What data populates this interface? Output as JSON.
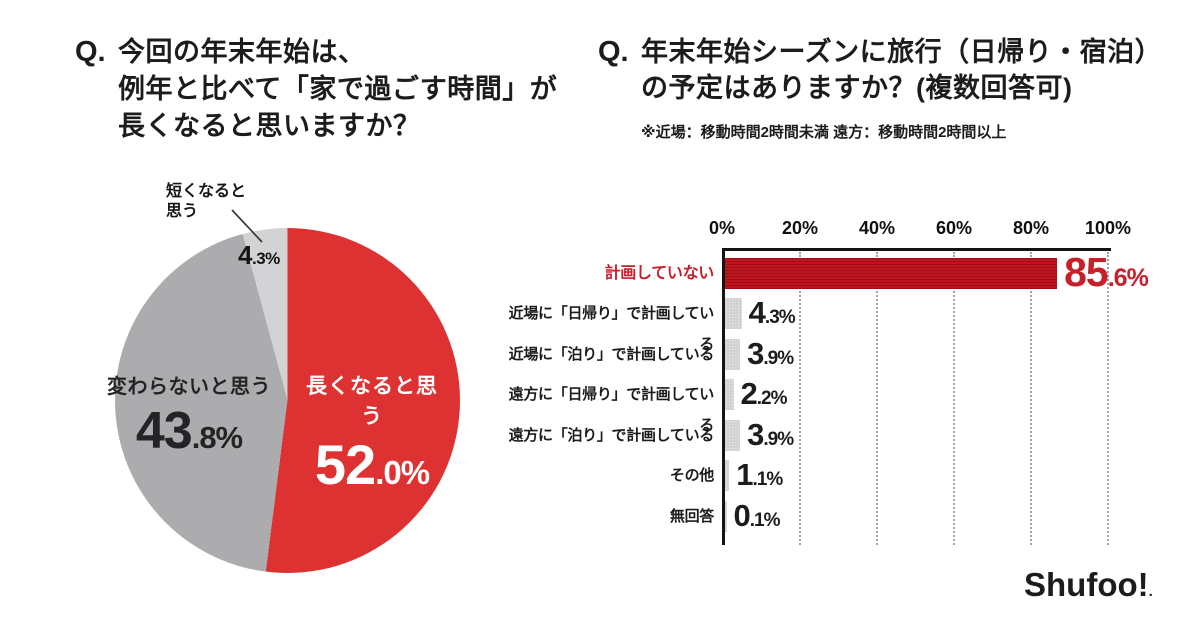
{
  "pie_section": {
    "title_prefix": "Q.",
    "title_lines": [
      "今回の年末年始は、",
      "例年と比べて「家で過ごす時間」が",
      "長くなると思いますか？"
    ]
  },
  "bar_section": {
    "title_prefix": "Q.",
    "title_lines": [
      "年末年始シーズンに旅行（日帰り・宿泊）",
      "の予定はありますか？(複数回答可)"
    ],
    "note": "※近場：移動時間2時間未満 遠方：移動時間2時間以上"
  },
  "logo": {
    "text": "Shufoo!",
    "mark": ".",
    "color": "#e3221b"
  },
  "colors": {
    "pie_accent_red": "#de3232",
    "pie_gray": "#acacae",
    "pie_light_gray": "#d3d3d5",
    "bar_red": "#bd141f",
    "bar_gray": "#d3d3d5",
    "highlight_text_red": "#c7202a",
    "text_black": "#1c1c1c",
    "background": "#ffffff"
  },
  "chart_data": [
    {
      "type": "pie",
      "title": "今回の年末年始は、例年と比べて「家で過ごす時間」が長くなると思いますか？",
      "start_angle_deg": 0,
      "direction": "clockwise",
      "legend": "none",
      "slices": [
        {
          "label": "長くなると思う",
          "value": 52.0,
          "color": "#de3232",
          "label_color": "#ffffff"
        },
        {
          "label": "変わらないと思う",
          "value": 43.8,
          "color": "#acacae",
          "label_color": "#242426"
        },
        {
          "label": "短くなると思う",
          "value": 4.3,
          "color": "#d3d3d5",
          "label_color": "#161616",
          "callout": true,
          "label_lines": [
            "短くなると",
            "思う"
          ]
        }
      ]
    },
    {
      "type": "bar",
      "orientation": "horizontal",
      "title": "年末年始シーズンに旅行（日帰り・宿泊）の予定はありますか？(複数回答可)",
      "categories": [
        "計画していない",
        "近場に「日帰り」で計画している",
        "近場に「泊り」で計画している",
        "遠方に「日帰り」で計画している",
        "遠方に「泊り」で計画している",
        "その他",
        "無回答"
      ],
      "values": [
        85.6,
        4.3,
        3.9,
        2.2,
        3.9,
        1.1,
        0.1
      ],
      "x_ticks": [
        "0%",
        "20%",
        "40%",
        "60%",
        "80%",
        "100%"
      ],
      "xlim": [
        0,
        100
      ],
      "grid": "dotted-vertical",
      "axis_position": "top",
      "highlight_index": 0,
      "highlight_color": "#bd141f",
      "bar_color": "#d3d3d5",
      "legend": "none"
    }
  ]
}
